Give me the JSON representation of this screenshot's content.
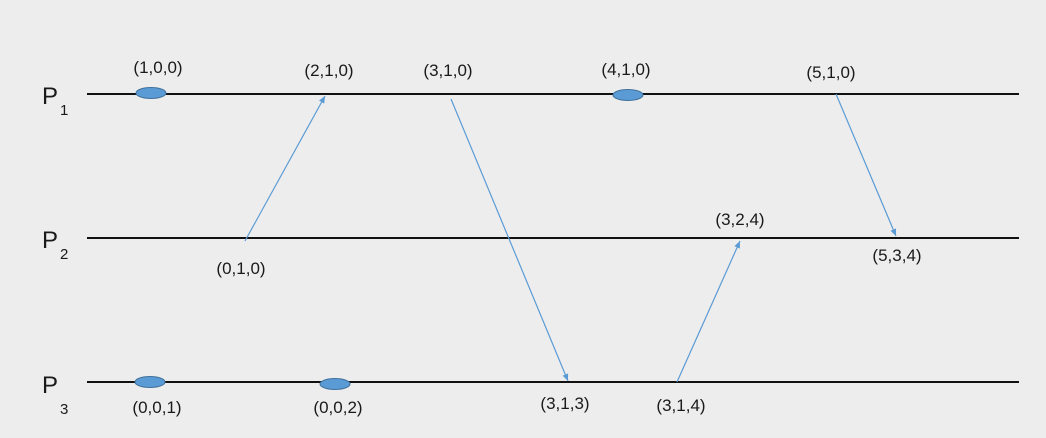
{
  "processes": [
    {
      "name": "P",
      "subscript": "1"
    },
    {
      "name": "P",
      "subscript": "2"
    },
    {
      "name": "P",
      "subscript": "3"
    }
  ],
  "timestamps": {
    "p1": [
      "(1,0,0)",
      "(2,1,0)",
      "(3,1,0)",
      "(4,1,0)",
      "(5,1,0)"
    ],
    "p2": [
      "(0,1,0)",
      "(3,2,4)",
      "(5,3,4)"
    ],
    "p3": [
      "(0,0,1)",
      "(0,0,2)",
      "(3,1,3)",
      "(3,1,4)"
    ]
  },
  "colors": {
    "background": "#ededed",
    "timeline": "#111111",
    "message_arrow": "#5b9bd5",
    "event_marker": "#5b9bd5"
  }
}
